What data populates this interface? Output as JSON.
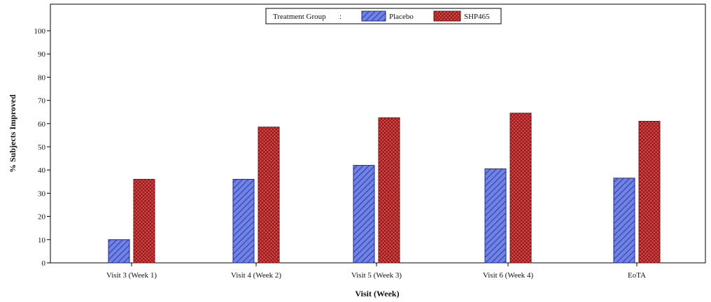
{
  "chart_data": {
    "type": "bar",
    "title": "",
    "xlabel": "Visit (Week)",
    "ylabel": "% Subjects Improved",
    "ylim": [
      0,
      100
    ],
    "yticks": [
      0,
      10,
      20,
      30,
      40,
      50,
      60,
      70,
      80,
      90,
      100
    ],
    "grid": false,
    "categories": [
      "Visit 3 (Week 1)",
      "Visit 4 (Week 2)",
      "Visit 5 (Week 3)",
      "Visit 6 (Week 4)",
      "EoTA"
    ],
    "legend": {
      "title": "Treatment Group",
      "placement": "top-center"
    },
    "series": [
      {
        "name": "Placebo",
        "color": "#4a5fd0",
        "pattern": "diagonal-hatch",
        "values": [
          10,
          36,
          42,
          40.5,
          36.5
        ]
      },
      {
        "name": "SHP465",
        "color": "#cc3a3a",
        "pattern": "crosshatch",
        "values": [
          36,
          58.5,
          62.5,
          64.5,
          61
        ]
      }
    ]
  }
}
